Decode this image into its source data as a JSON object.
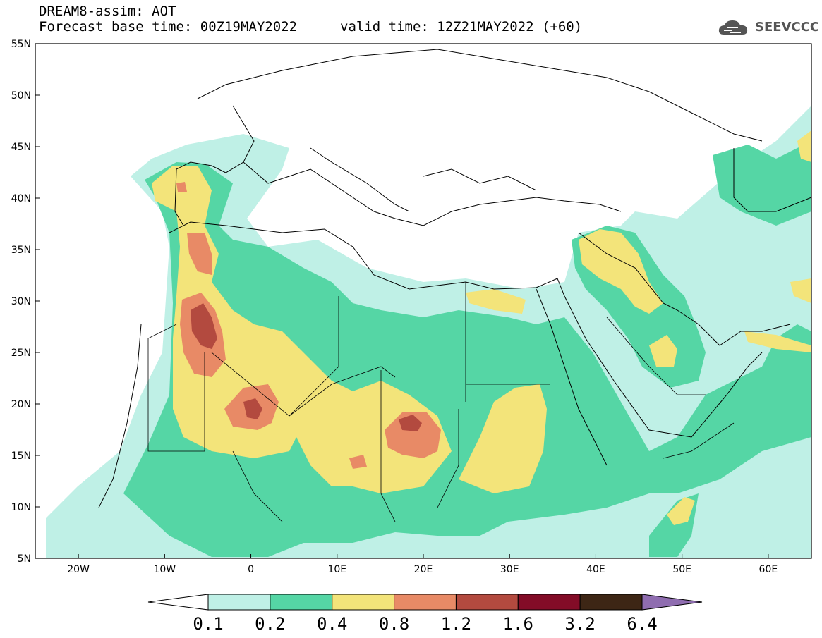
{
  "title": {
    "line1": "DREAM8-assim: AOT",
    "line2": "Forecast base time: 00Z19MAY2022",
    "valid": "valid time: 12Z21MAY2022 (+60)"
  },
  "logo": {
    "text": "SEEVCCC",
    "icon": "cloud-icon"
  },
  "map": {
    "lon_range": [
      -25,
      65
    ],
    "lat_range": [
      5,
      55
    ],
    "lat_ticks": [
      {
        "v": 55,
        "label": "55N"
      },
      {
        "v": 50,
        "label": "50N"
      },
      {
        "v": 45,
        "label": "45N"
      },
      {
        "v": 40,
        "label": "40N"
      },
      {
        "v": 35,
        "label": "35N"
      },
      {
        "v": 30,
        "label": "30N"
      },
      {
        "v": 25,
        "label": "25N"
      },
      {
        "v": 20,
        "label": "20N"
      },
      {
        "v": 15,
        "label": "15N"
      },
      {
        "v": 10,
        "label": "10N"
      },
      {
        "v": 5,
        "label": "5N"
      }
    ],
    "lon_ticks": [
      {
        "v": -20,
        "label": "20W"
      },
      {
        "v": -10,
        "label": "10W"
      },
      {
        "v": 0,
        "label": "0"
      },
      {
        "v": 10,
        "label": "10E"
      },
      {
        "v": 20,
        "label": "20E"
      },
      {
        "v": 30,
        "label": "30E"
      },
      {
        "v": 40,
        "label": "40E"
      },
      {
        "v": 50,
        "label": "50E"
      },
      {
        "v": 60,
        "label": "60E"
      }
    ]
  },
  "colorbar": {
    "colors": [
      "#ffffff",
      "#bff0e6",
      "#55d6a5",
      "#f3e47a",
      "#e88a66",
      "#b34a3f",
      "#830c27",
      "#3d2615",
      "#8f6db0"
    ],
    "labels": [
      "0.1",
      "0.2",
      "0.4",
      "0.8",
      "1.2",
      "1.6",
      "3.2",
      "6.4"
    ]
  }
}
